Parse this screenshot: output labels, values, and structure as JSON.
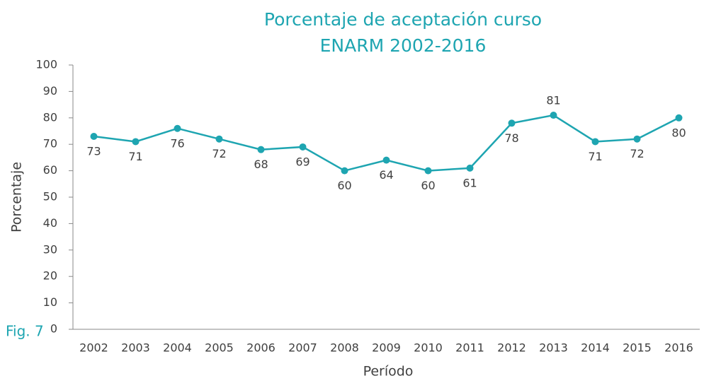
{
  "chart_data": {
    "type": "line",
    "title": [
      "Porcentaje de aceptación curso",
      "ENARM 2002-2016"
    ],
    "annotation": "Fig. 7",
    "x_label": "Período",
    "y_label": "Porcentaje",
    "categories": [
      "2002",
      "2003",
      "2004",
      "2005",
      "2006",
      "2007",
      "2008",
      "2009",
      "2010",
      "2011",
      "2012",
      "2013",
      "2014",
      "2015",
      "2016"
    ],
    "values": [
      73,
      71,
      76,
      72,
      68,
      69,
      60,
      64,
      60,
      61,
      78,
      81,
      71,
      72,
      80
    ],
    "color": "#1ea5b1",
    "ylim": [
      0,
      100
    ],
    "yticks": [
      0,
      10,
      20,
      30,
      40,
      50,
      60,
      70,
      80,
      90,
      100
    ],
    "grid": false
  }
}
